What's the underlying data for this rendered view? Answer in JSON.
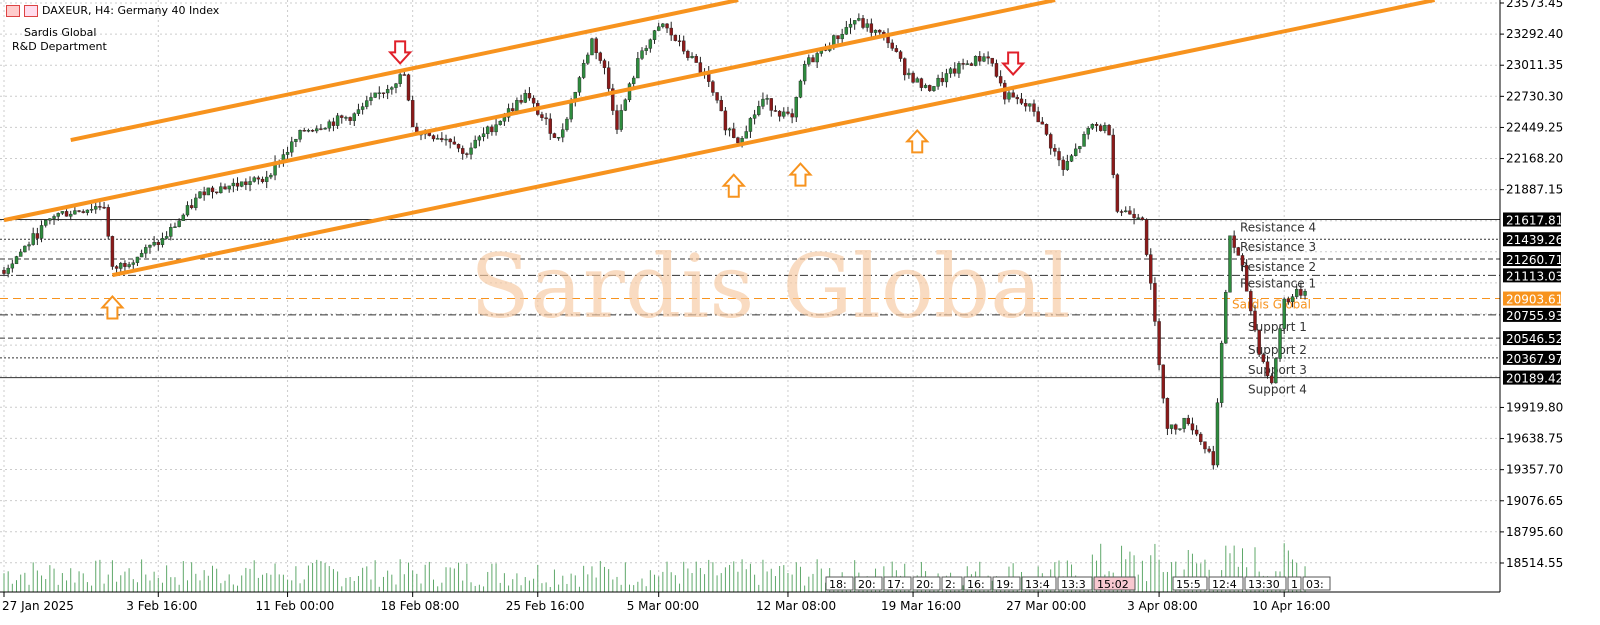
{
  "header": {
    "symbol": "DAXEUR, H4:  Germany 40 Index",
    "line1": "Sardis Global",
    "line2": "R&D Department"
  },
  "watermark": "Sardis Global",
  "colors": {
    "up": "#2e8b3e",
    "down": "#8b1a1a",
    "channel": "#f7931e",
    "volume": "#5fa86a",
    "sardis": "#f7931e",
    "arrow_up": "#f7931e",
    "arrow_down": "#e0202a"
  },
  "chart_data": {
    "type": "candlestick",
    "symbol": "DAXEUR",
    "timeframe": "H4",
    "ylim": [
      18514.55,
      23573.45
    ],
    "y_ticks": [
      "23573.45",
      "23292.40",
      "23011.35",
      "22730.30",
      "22449.25",
      "22168.20",
      "21887.15",
      "19919.80",
      "19638.75",
      "19357.70",
      "19076.65",
      "18795.60",
      "18514.55"
    ],
    "x_ticks": [
      {
        "label": "27 Jan 2025",
        "i": 0
      },
      {
        "label": "3 Feb 16:00",
        "i": 37
      },
      {
        "label": "11 Feb 00:00",
        "i": 68
      },
      {
        "label": "18 Feb 08:00",
        "i": 98
      },
      {
        "label": "25 Feb 16:00",
        "i": 128
      },
      {
        "label": "5 Mar 00:00",
        "i": 157
      },
      {
        "label": "12 Mar 08:00",
        "i": 188
      },
      {
        "label": "19 Mar 16:00",
        "i": 218
      },
      {
        "label": "27 Mar 00:00",
        "i": 248
      },
      {
        "label": "3 Apr 08:00",
        "i": 277
      },
      {
        "label": "10 Apr 16:00",
        "i": 307
      }
    ],
    "price_path": [
      [
        0,
        21160
      ],
      [
        12,
        21657
      ],
      [
        24,
        21750
      ],
      [
        26,
        21160
      ],
      [
        38,
        21430
      ],
      [
        48,
        21883
      ],
      [
        62,
        21973
      ],
      [
        72,
        22425
      ],
      [
        84,
        22560
      ],
      [
        94,
        22877
      ],
      [
        96,
        22922
      ],
      [
        98,
        22425
      ],
      [
        108,
        22335
      ],
      [
        110,
        22200
      ],
      [
        125,
        22740
      ],
      [
        133,
        22335
      ],
      [
        141,
        23240
      ],
      [
        144,
        22968
      ],
      [
        147,
        22470
      ],
      [
        153,
        23150
      ],
      [
        158,
        23375
      ],
      [
        168,
        22922
      ],
      [
        173,
        22470
      ],
      [
        176,
        22335
      ],
      [
        182,
        22697
      ],
      [
        189,
        22515
      ],
      [
        192,
        23013
      ],
      [
        199,
        23240
      ],
      [
        204,
        23420
      ],
      [
        212,
        23240
      ],
      [
        216,
        22968
      ],
      [
        221,
        22787
      ],
      [
        230,
        23013
      ],
      [
        236,
        23104
      ],
      [
        240,
        22740
      ],
      [
        247,
        22606
      ],
      [
        254,
        22064
      ],
      [
        261,
        22470
      ],
      [
        265,
        22425
      ],
      [
        267,
        21702
      ],
      [
        273,
        21657
      ],
      [
        277,
        20347
      ],
      [
        279,
        19714
      ],
      [
        284,
        19804
      ],
      [
        290,
        19443
      ],
      [
        294,
        21476
      ],
      [
        297,
        21160
      ],
      [
        301,
        20437
      ],
      [
        304,
        20121
      ],
      [
        307,
        20889
      ],
      [
        312,
        20980
      ]
    ],
    "channel": [
      {
        "name": "upper",
        "p1": [
          16,
          22335
        ],
        "p2": [
          176,
          23600
        ]
      },
      {
        "name": "middle",
        "p1": [
          0,
          21612
        ],
        "p2": [
          252,
          23600
        ]
      },
      {
        "name": "lower",
        "p1": [
          26,
          21115
        ],
        "p2": [
          343,
          23600
        ]
      }
    ],
    "levels": [
      {
        "label": "Resistance 4",
        "value": 21617.81,
        "price": "21617.81",
        "style": "solid"
      },
      {
        "label": "Resistance 3",
        "value": 21439.26,
        "price": "21439.26",
        "style": "dot"
      },
      {
        "label": "Resistance 2",
        "value": 21260.71,
        "price": "21260.71",
        "style": "dash"
      },
      {
        "label": "Resistance 1",
        "value": 21113.03,
        "price": "21113.03",
        "style": "dashdot"
      },
      {
        "label": "Sardis Global",
        "value": 20903.61,
        "price": "20903.61",
        "style": "orange"
      },
      {
        "label": "Support 1",
        "value": 20755.93,
        "price": "20755.93",
        "style": "dashdot"
      },
      {
        "label": "Support 2",
        "value": 20546.52,
        "price": "20546.52",
        "style": "dash"
      },
      {
        "label": "Support 3",
        "value": 20367.97,
        "price": "20367.97",
        "style": "dot"
      },
      {
        "label": "Support 4",
        "value": 20189.42,
        "price": "20189.42",
        "style": "solid"
      }
    ],
    "arrows": [
      {
        "dir": "down",
        "i": 95,
        "price": 23100
      },
      {
        "dir": "down",
        "i": 242,
        "price": 23000
      },
      {
        "dir": "up",
        "i": 26,
        "price": 20850
      },
      {
        "dir": "up",
        "i": 175,
        "price": 21950
      },
      {
        "dir": "up",
        "i": 191,
        "price": 22050
      },
      {
        "dir": "up",
        "i": 219,
        "price": 22350
      }
    ],
    "session_marks": [
      "18:",
      "20:",
      "17:",
      "20:",
      "2:",
      "16:",
      "19:",
      "13:4",
      "13:3",
      "15:02",
      "15:5",
      "12:4",
      "13:30",
      "1",
      "03:"
    ]
  }
}
